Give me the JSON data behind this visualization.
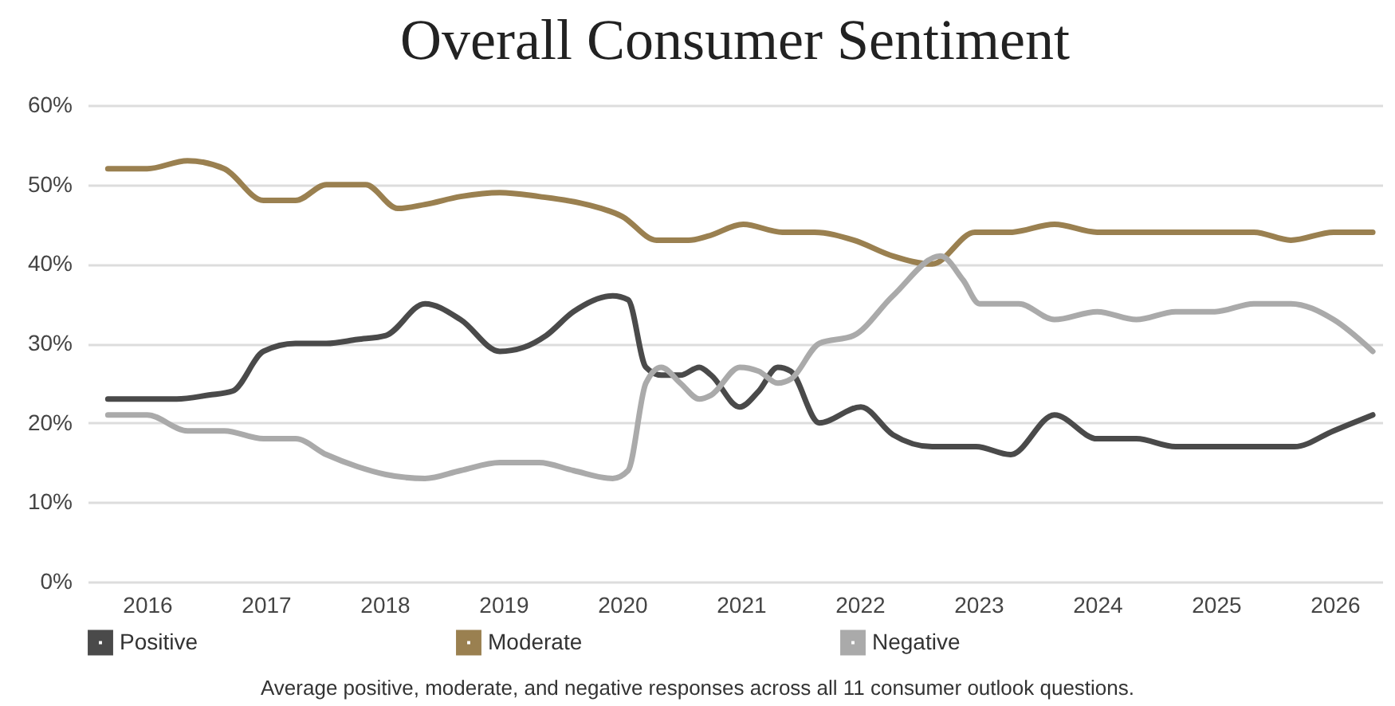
{
  "chart_data": {
    "type": "line",
    "title": "Overall Consumer Sentiment",
    "annotations": [
      "Average positive, moderate, and negative responses across all 11 consumer outlook questions."
    ],
    "xlim": [
      2015.5,
      2026.4
    ],
    "xticks": [
      2016,
      2017,
      2018,
      2019,
      2020,
      2021,
      2022,
      2023,
      2024,
      2025,
      2026
    ],
    "ylim": [
      0,
      60
    ],
    "yticks": [
      {
        "value": 0,
        "label": "0%"
      },
      {
        "value": 10,
        "label": "10%"
      },
      {
        "value": 20,
        "label": "20%"
      },
      {
        "value": 30,
        "label": "30%"
      },
      {
        "value": 40,
        "label": "40%"
      },
      {
        "value": 50,
        "label": "50%"
      },
      {
        "value": 60,
        "label": "60%"
      }
    ],
    "grid": "y",
    "legend": "bottom",
    "marker": "none",
    "line_style": "solid",
    "series": [
      {
        "name": "Positive",
        "color": "#4a4a4a",
        "x": [
          2015.67,
          2016,
          2016.25,
          2016.52,
          2016.72,
          2016.98,
          2017.25,
          2017.51,
          2017.77,
          2018.01,
          2018.34,
          2018.64,
          2018.97,
          2019.17,
          2019.36,
          2019.59,
          2019.92,
          2020.05,
          2020.2,
          2020.33,
          2020.49,
          2020.65,
          2020.75,
          2020.99,
          2021.15,
          2021.31,
          2021.42,
          2021.66,
          2022.01,
          2022.28,
          2022.61,
          2022.98,
          2023.27,
          2023.64,
          2024,
          2024.33,
          2024.66,
          2024.99,
          2025.39,
          2025.66,
          2025.99,
          2026.32
        ],
        "values": [
          23,
          23,
          23,
          23.5,
          24,
          29,
          30,
          30,
          30.5,
          31,
          35,
          33,
          29,
          29.5,
          31,
          34,
          36,
          35.5,
          27,
          26,
          26,
          27,
          26,
          22,
          24,
          27,
          26.5,
          20,
          22,
          18.5,
          17,
          17,
          16,
          21,
          18,
          18,
          17,
          17,
          17,
          17,
          19,
          21
        ]
      },
      {
        "name": "Moderate",
        "color": "#9a8050",
        "x": [
          2015.67,
          2016,
          2016.34,
          2016.65,
          2016.98,
          2017.25,
          2017.51,
          2017.84,
          2018.11,
          2018.34,
          2018.64,
          2018.97,
          2019.3,
          2019.7,
          2020,
          2020.29,
          2020.56,
          2020.72,
          2021.02,
          2021.35,
          2021.62,
          2021.95,
          2022.28,
          2022.61,
          2022.97,
          2023.27,
          2023.64,
          2024,
          2024.4,
          2024.99,
          2025.32,
          2025.63,
          2025.99,
          2026.32
        ],
        "values": [
          52,
          52,
          53,
          52,
          48,
          48,
          50,
          50,
          47,
          47.5,
          48.5,
          49,
          48.5,
          47.5,
          46,
          43,
          43,
          43.5,
          45,
          44,
          44,
          43,
          41,
          40,
          44,
          44,
          45,
          44,
          44,
          44,
          44,
          43,
          44,
          44
        ]
      },
      {
        "name": "Negative",
        "color": "#aaaaaa",
        "x": [
          2015.67,
          2016,
          2016.34,
          2016.65,
          2016.98,
          2017.25,
          2017.51,
          2017.77,
          2018.01,
          2018.34,
          2018.64,
          2018.97,
          2019.3,
          2019.59,
          2019.92,
          2020.05,
          2020.2,
          2020.33,
          2020.49,
          2020.65,
          2020.75,
          2020.99,
          2021.15,
          2021.31,
          2021.42,
          2021.66,
          2021.95,
          2022.28,
          2022.68,
          2022.87,
          2023.01,
          2023.34,
          2023.64,
          2024,
          2024.33,
          2024.66,
          2024.99,
          2025.32,
          2025.63,
          2025.99,
          2026.32
        ],
        "values": [
          21,
          21,
          19,
          19,
          18,
          18,
          16,
          14.5,
          13.5,
          13,
          14,
          15,
          15,
          14,
          13,
          14,
          25,
          27,
          25,
          23,
          23.5,
          27,
          26.5,
          25,
          25.5,
          30,
          31,
          36,
          41,
          38,
          35,
          35,
          33,
          34,
          33,
          34,
          34,
          35,
          35,
          33,
          29
        ]
      }
    ]
  }
}
